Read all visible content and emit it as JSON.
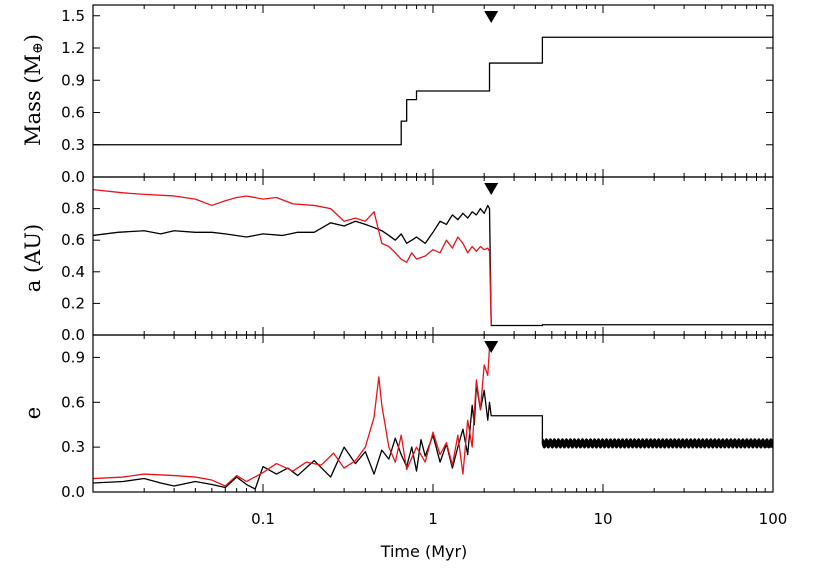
{
  "chart_data": {
    "type": "line",
    "xlabel": "Time (Myr)",
    "xscale": "log",
    "xlim": [
      0.01,
      100
    ],
    "x_tick_labels": [
      "0.1",
      "1",
      "10",
      "100"
    ],
    "x_tick_values": [
      0.1,
      1,
      10,
      100
    ],
    "event_time": 2.2,
    "panels": [
      {
        "id": "mass",
        "ylabel": "Mass (M",
        "ylabel_symbol": "⊕",
        "ylabel_close": ")",
        "ylim": [
          0,
          1.6
        ],
        "y_tick_labels": [
          "0.0",
          "0.3",
          "0.6",
          "0.9",
          "1.2",
          "1.5"
        ],
        "y_tick_values": [
          0,
          0.3,
          0.6,
          0.9,
          1.2,
          1.5
        ],
        "series": [
          {
            "color": "#000000",
            "step": true,
            "x": [
              0.01,
              0.65,
              0.65,
              0.7,
              0.7,
              0.8,
              0.8,
              1.35,
              1.35,
              2.15,
              2.15,
              4.4,
              4.4,
              100
            ],
            "y": [
              0.3,
              0.3,
              0.52,
              0.52,
              0.72,
              0.72,
              0.8,
              0.8,
              0.8,
              0.8,
              1.06,
              1.06,
              1.3,
              1.3
            ]
          }
        ]
      },
      {
        "id": "semimajor",
        "ylabel": "a (AU)",
        "ylim": [
          0,
          1.0
        ],
        "y_tick_labels": [
          "0.0",
          "0.2",
          "0.4",
          "0.6",
          "0.8"
        ],
        "y_tick_values": [
          0,
          0.2,
          0.4,
          0.6,
          0.8
        ],
        "series": [
          {
            "color": "#000000",
            "x": [
              0.01,
              0.014,
              0.02,
              0.025,
              0.03,
              0.04,
              0.05,
              0.06,
              0.08,
              0.1,
              0.13,
              0.16,
              0.2,
              0.25,
              0.3,
              0.35,
              0.4,
              0.45,
              0.5,
              0.55,
              0.6,
              0.65,
              0.7,
              0.75,
              0.8,
              0.9,
              1.0,
              1.1,
              1.2,
              1.3,
              1.4,
              1.5,
              1.6,
              1.7,
              1.8,
              1.9,
              2.0,
              2.1,
              2.15,
              2.2,
              2.25,
              4.4,
              4.4,
              100
            ],
            "y": [
              0.63,
              0.65,
              0.66,
              0.64,
              0.66,
              0.65,
              0.65,
              0.64,
              0.62,
              0.64,
              0.63,
              0.65,
              0.65,
              0.71,
              0.69,
              0.72,
              0.7,
              0.68,
              0.66,
              0.63,
              0.6,
              0.64,
              0.58,
              0.6,
              0.62,
              0.58,
              0.65,
              0.72,
              0.7,
              0.76,
              0.73,
              0.77,
              0.74,
              0.78,
              0.76,
              0.8,
              0.77,
              0.82,
              0.8,
              0.06,
              0.06,
              0.06,
              0.065,
              0.065
            ]
          },
          {
            "color": "#e8141a",
            "x": [
              0.01,
              0.015,
              0.02,
              0.03,
              0.04,
              0.05,
              0.06,
              0.07,
              0.08,
              0.1,
              0.12,
              0.15,
              0.2,
              0.25,
              0.3,
              0.35,
              0.4,
              0.45,
              0.5,
              0.55,
              0.6,
              0.65,
              0.7,
              0.75,
              0.8,
              0.9,
              1.0,
              1.1,
              1.2,
              1.3,
              1.4,
              1.5,
              1.6,
              1.7,
              1.8,
              1.9,
              2.0,
              2.1,
              2.15,
              2.2
            ],
            "y": [
              0.92,
              0.9,
              0.89,
              0.88,
              0.86,
              0.82,
              0.85,
              0.87,
              0.88,
              0.86,
              0.87,
              0.83,
              0.82,
              0.8,
              0.72,
              0.74,
              0.72,
              0.78,
              0.58,
              0.56,
              0.52,
              0.48,
              0.46,
              0.52,
              0.48,
              0.5,
              0.54,
              0.52,
              0.6,
              0.55,
              0.62,
              0.58,
              0.52,
              0.56,
              0.53,
              0.56,
              0.54,
              0.55,
              0.53,
              0.06
            ]
          }
        ]
      },
      {
        "id": "eccentricity",
        "ylabel": "e",
        "ylim": [
          0,
          1.05
        ],
        "y_tick_labels": [
          "0.0",
          "0.3",
          "0.6",
          "0.9"
        ],
        "y_tick_values": [
          0,
          0.3,
          0.6,
          0.9
        ],
        "series": [
          {
            "color": "#000000",
            "x": [
              0.01,
              0.015,
              0.02,
              0.025,
              0.03,
              0.04,
              0.05,
              0.06,
              0.07,
              0.08,
              0.09,
              0.1,
              0.12,
              0.14,
              0.16,
              0.2,
              0.25,
              0.3,
              0.35,
              0.4,
              0.45,
              0.5,
              0.55,
              0.6,
              0.65,
              0.7,
              0.75,
              0.8,
              0.85,
              0.9,
              1.0,
              1.1,
              1.2,
              1.3,
              1.4,
              1.5,
              1.6,
              1.7,
              1.75,
              1.8,
              1.9,
              2.0,
              2.1,
              2.15,
              2.2,
              2.25,
              4.4,
              4.4
            ],
            "y": [
              0.06,
              0.07,
              0.09,
              0.06,
              0.04,
              0.07,
              0.05,
              0.03,
              0.1,
              0.05,
              0.02,
              0.17,
              0.12,
              0.16,
              0.11,
              0.21,
              0.1,
              0.3,
              0.19,
              0.27,
              0.12,
              0.28,
              0.22,
              0.36,
              0.25,
              0.17,
              0.3,
              0.14,
              0.35,
              0.24,
              0.38,
              0.2,
              0.32,
              0.16,
              0.3,
              0.42,
              0.25,
              0.58,
              0.45,
              0.72,
              0.55,
              0.68,
              0.48,
              0.6,
              0.51,
              0.51,
              0.51,
              0.33
            ]
          },
          {
            "color": "#e8141a",
            "x": [
              0.01,
              0.015,
              0.02,
              0.03,
              0.04,
              0.05,
              0.06,
              0.07,
              0.08,
              0.1,
              0.12,
              0.15,
              0.18,
              0.22,
              0.26,
              0.3,
              0.35,
              0.4,
              0.45,
              0.48,
              0.5,
              0.55,
              0.6,
              0.65,
              0.7,
              0.8,
              0.9,
              1.0,
              1.1,
              1.2,
              1.3,
              1.4,
              1.5,
              1.6,
              1.7,
              1.8,
              1.9,
              2.0,
              2.1,
              2.15
            ],
            "y": [
              0.09,
              0.1,
              0.12,
              0.11,
              0.1,
              0.08,
              0.04,
              0.11,
              0.07,
              0.13,
              0.19,
              0.14,
              0.2,
              0.18,
              0.26,
              0.16,
              0.21,
              0.3,
              0.5,
              0.77,
              0.58,
              0.3,
              0.2,
              0.38,
              0.15,
              0.3,
              0.2,
              0.4,
              0.25,
              0.33,
              0.18,
              0.38,
              0.12,
              0.48,
              0.3,
              0.75,
              0.55,
              0.85,
              0.78,
              0.97
            ]
          },
          {
            "color": "#000000",
            "oscillating": true,
            "x_start": 4.4,
            "x_end": 100,
            "center": 0.325,
            "amplitude": 0.03
          }
        ]
      }
    ]
  }
}
